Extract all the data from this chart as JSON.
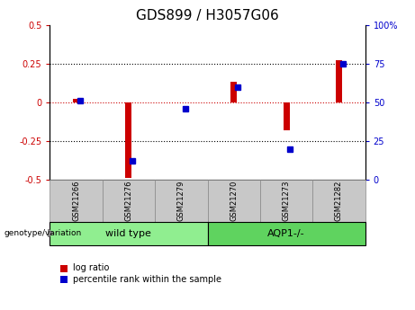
{
  "title": "GDS899 / H3057G06",
  "samples": [
    "GSM21266",
    "GSM21276",
    "GSM21279",
    "GSM21270",
    "GSM21273",
    "GSM21282"
  ],
  "log_ratios": [
    0.02,
    -0.49,
    0.0,
    0.13,
    -0.18,
    0.27
  ],
  "percentile_ranks": [
    51,
    12,
    46,
    60,
    20,
    75
  ],
  "groups": [
    {
      "label": "wild type",
      "indices": [
        0,
        1,
        2
      ],
      "color": "#90EE90"
    },
    {
      "label": "AQP1-/-",
      "indices": [
        3,
        4,
        5
      ],
      "color": "#5FD35F"
    }
  ],
  "group_separator": 2.5,
  "ylim_left": [
    -0.5,
    0.5
  ],
  "ylim_right": [
    0,
    100
  ],
  "yticks_left": [
    -0.5,
    -0.25,
    0,
    0.25,
    0.5
  ],
  "yticks_right": [
    0,
    25,
    50,
    75,
    100
  ],
  "bar_color_red": "#CC0000",
  "bar_color_blue": "#0000CC",
  "background_color": "#ffffff",
  "plot_bg": "#ffffff",
  "sample_box_color": "#C8C8C8",
  "genotype_label": "genotype/variation",
  "legend_log_ratio": "log ratio",
  "legend_percentile": "percentile rank within the sample",
  "title_fontsize": 11,
  "tick_fontsize": 7,
  "label_fontsize": 7,
  "bar_width": 0.12
}
